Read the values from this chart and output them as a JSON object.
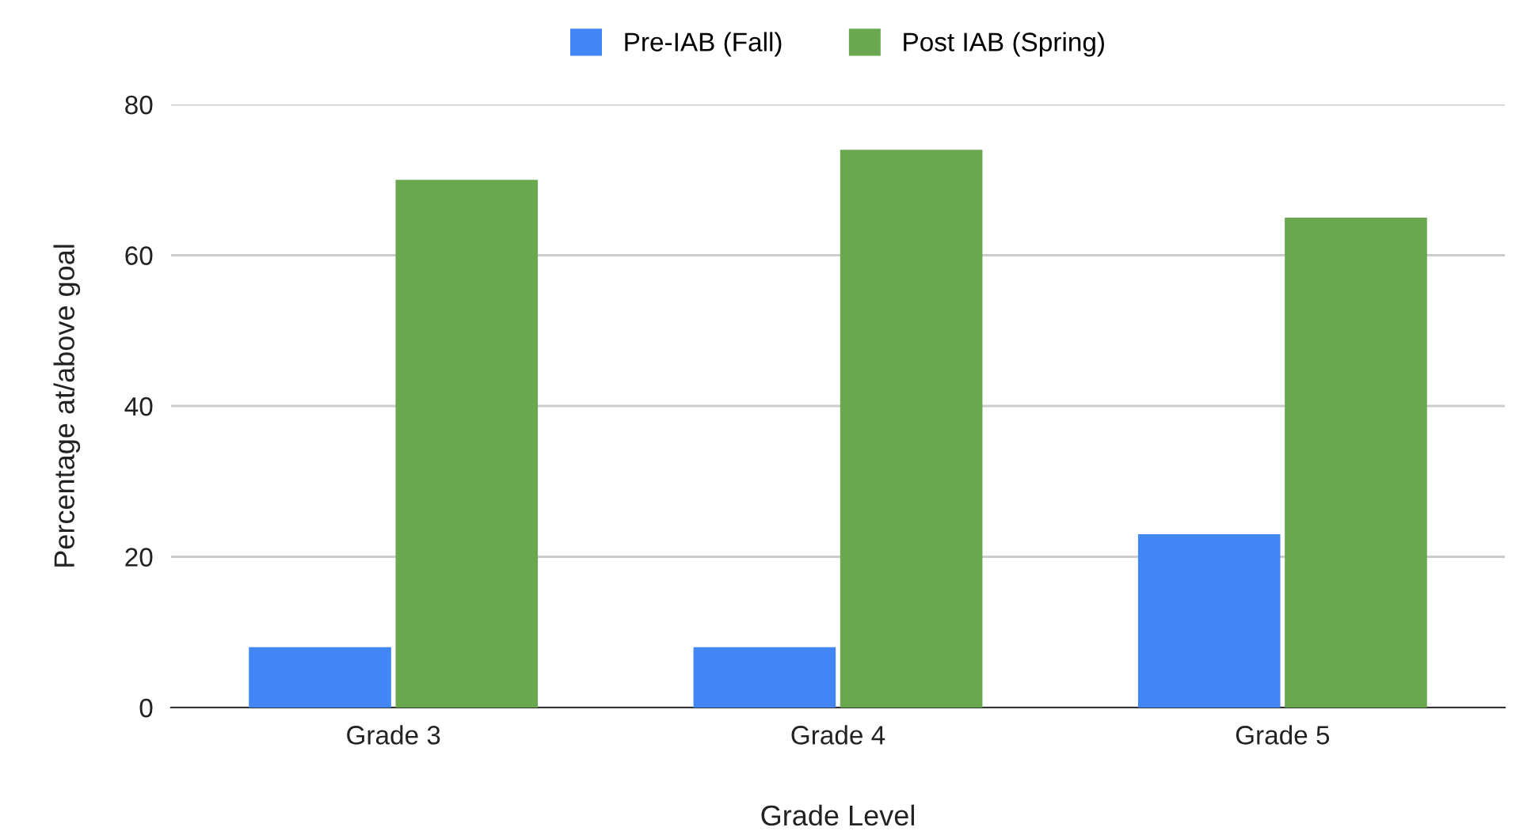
{
  "chart_data": {
    "type": "bar",
    "xlabel": "Grade Level",
    "ylabel": "Percentage at/above goal",
    "categories": [
      "Grade 3",
      "Grade 4",
      "Grade 5"
    ],
    "series": [
      {
        "name": "Pre-IAB (Fall)",
        "color": "#4285f4",
        "values": [
          8,
          8,
          23
        ]
      },
      {
        "name": "Post IAB (Spring)",
        "color": "#6aa84f",
        "values": [
          70,
          74,
          65
        ]
      }
    ],
    "ylim": [
      0,
      80
    ],
    "yticks": [
      0,
      20,
      40,
      60,
      80
    ],
    "grid": "y",
    "legend": "top"
  }
}
